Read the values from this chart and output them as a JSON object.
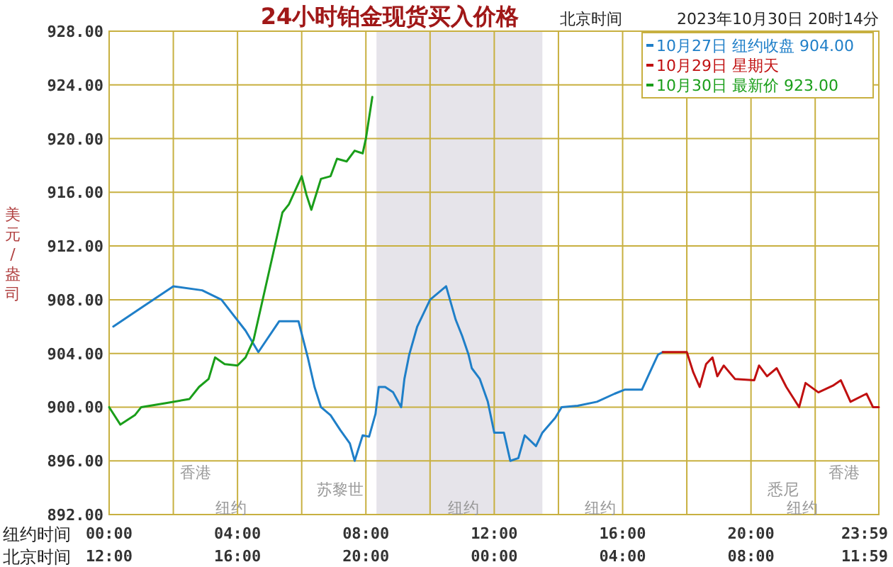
{
  "chart_data": {
    "type": "line",
    "title": "24小时铂金现货买入价格",
    "subtitle": "北京时间",
    "ylabel": "美元/盎司",
    "xlabel": "纽约时间",
    "xlim": [
      0,
      23.983
    ],
    "ylim": [
      892,
      928
    ],
    "xticks": [
      {
        "value": 0,
        "label": "00:00"
      },
      {
        "value": 2,
        "label": null
      },
      {
        "value": 4,
        "label": "04:00"
      },
      {
        "value": 6,
        "label": null
      },
      {
        "value": 8,
        "label": "08:00"
      },
      {
        "value": 10,
        "label": null
      },
      {
        "value": 12,
        "label": "12:00"
      },
      {
        "value": 14,
        "label": null
      },
      {
        "value": 16,
        "label": "16:00"
      },
      {
        "value": 18,
        "label": null
      },
      {
        "value": 20,
        "label": "20:00"
      },
      {
        "value": 22,
        "label": null
      },
      {
        "value": 23.983,
        "label": "23:59"
      }
    ],
    "yticks": [
      {
        "value": 892,
        "label": "892.00"
      },
      {
        "value": 896,
        "label": "896.00"
      },
      {
        "value": 900,
        "label": "900.00"
      },
      {
        "value": 904,
        "label": "904.00"
      },
      {
        "value": 908,
        "label": "908.00"
      },
      {
        "value": 912,
        "label": "912.00"
      },
      {
        "value": 916,
        "label": "916.00"
      },
      {
        "value": 920,
        "label": "920.00"
      },
      {
        "value": 924,
        "label": "924.00"
      },
      {
        "value": 928,
        "label": "928.00"
      }
    ],
    "grid": true,
    "legend": "top right",
    "bands": [
      {
        "axis": "x",
        "from": 8.33,
        "to": 13.5,
        "color": "#e6e4ea"
      }
    ],
    "series": [
      {
        "name": "10月27日 纽约收盘 904.00",
        "color": "#1f7fc8",
        "x": [
          0.13,
          1.0,
          2.0,
          2.9,
          3.5,
          4.25,
          4.65,
          5.3,
          5.9,
          6.2,
          6.4,
          6.6,
          6.9,
          7.2,
          7.5,
          7.65,
          7.9,
          8.1,
          8.3,
          8.4,
          8.6,
          8.85,
          9.1,
          9.2,
          9.35,
          9.6,
          10.0,
          10.5,
          10.8,
          11.0,
          11.2,
          11.3,
          11.55,
          11.8,
          12.0,
          12.3,
          12.5,
          12.75,
          12.95,
          13.3,
          13.5,
          13.9,
          14.1,
          14.6,
          15.2,
          15.75,
          16.06,
          16.6,
          16.85,
          17.1,
          17.25
        ],
        "values": [
          906,
          907.4,
          909,
          908.7,
          908,
          905.7,
          904.1,
          906.4,
          906.4,
          903.6,
          901.5,
          900,
          899.4,
          898.3,
          897.3,
          896,
          897.9,
          897.8,
          899.5,
          901.5,
          901.5,
          901.1,
          900,
          902.1,
          903.9,
          906,
          908,
          909,
          906.5,
          905.3,
          903.9,
          902.9,
          902.1,
          900.4,
          898.1,
          898.1,
          896,
          896.2,
          897.9,
          897.1,
          898.1,
          899.2,
          900,
          900.1,
          900.4,
          901,
          901.3,
          901.3,
          902.6,
          903.9,
          904.1
        ]
      },
      {
        "name": "10月29日 星期天",
        "color": "#c01010",
        "x": [
          17.25,
          18.0,
          18.2,
          18.4,
          18.6,
          18.8,
          18.95,
          19.15,
          19.5,
          20.1,
          20.25,
          20.5,
          20.8,
          21.1,
          21.5,
          21.7,
          22.1,
          22.55,
          22.8,
          23.1,
          23.6,
          23.8,
          23.983
        ],
        "values": [
          904.1,
          904.1,
          902.6,
          901.5,
          903.2,
          903.7,
          902.3,
          903.1,
          902.1,
          902,
          903.1,
          902.3,
          902.9,
          901.5,
          900,
          901.8,
          901.1,
          901.6,
          902,
          900.4,
          901,
          900,
          900
        ]
      },
      {
        "name": "10月30日 最新价 923.00",
        "color": "#1a9e1a",
        "x": [
          0,
          0.35,
          0.8,
          1.0,
          1.77,
          2.5,
          2.8,
          3.1,
          3.3,
          3.6,
          4.0,
          4.25,
          4.5,
          5.4,
          5.6,
          6.0,
          6.15,
          6.3,
          6.6,
          6.9,
          7.1,
          7.4,
          7.65,
          7.9,
          8.0,
          8.2
        ],
        "values": [
          900,
          898.7,
          899.4,
          900,
          900.3,
          900.6,
          901.5,
          902.1,
          903.7,
          903.2,
          903.1,
          903.7,
          905,
          914.5,
          915.1,
          917.2,
          915.8,
          914.7,
          917,
          917.2,
          918.5,
          918.3,
          919.1,
          918.9,
          920,
          923.1
        ]
      }
    ],
    "annotations": [
      "2023年10月30日 20时14分",
      "北京时间",
      "12:00",
      "16:00",
      "20:00",
      "00:00",
      "04:00",
      "08:00",
      "11:59",
      "香港",
      "苏黎世",
      "纽约",
      "纽约",
      "纽约",
      "悉尼",
      "纽约",
      "香港"
    ]
  }
}
